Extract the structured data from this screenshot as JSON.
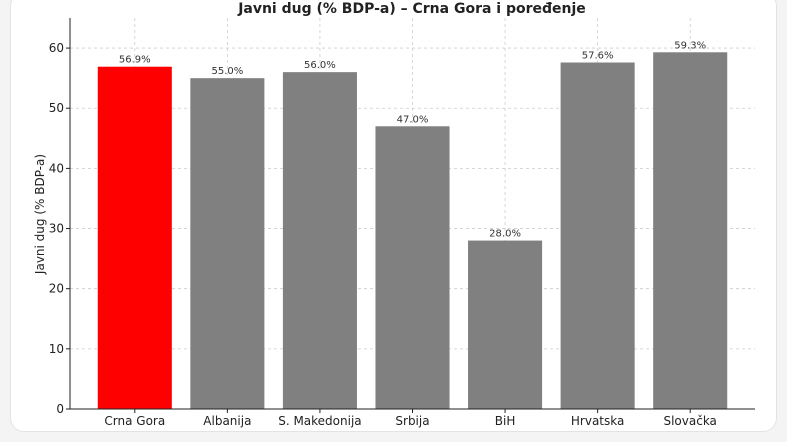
{
  "chart_data": {
    "type": "bar",
    "title": "Javni dug (% BDP-a) – Crna Gora i poređenje",
    "xlabel": "",
    "ylabel": "Javni dug (% BDP-a)",
    "categories": [
      "Crna Gora",
      "Albanija",
      "S. Makedonija",
      "Srbija",
      "BiH",
      "Hrvatska",
      "Slovačka"
    ],
    "values": [
      56.9,
      55.0,
      56.0,
      47.0,
      28.0,
      57.6,
      59.3
    ],
    "value_labels": [
      "56.9%",
      "55.0%",
      "56.0%",
      "47.0%",
      "28.0%",
      "57.6%",
      "59.3%"
    ],
    "yticks": [
      0,
      10,
      20,
      30,
      40,
      50,
      60
    ],
    "ylim": [
      0,
      65
    ],
    "grid": true,
    "colors": {
      "highlight": "#ff0000",
      "default": "#808080",
      "grid": "#cccccc",
      "axis": "#222222"
    },
    "highlight_index": 0
  }
}
